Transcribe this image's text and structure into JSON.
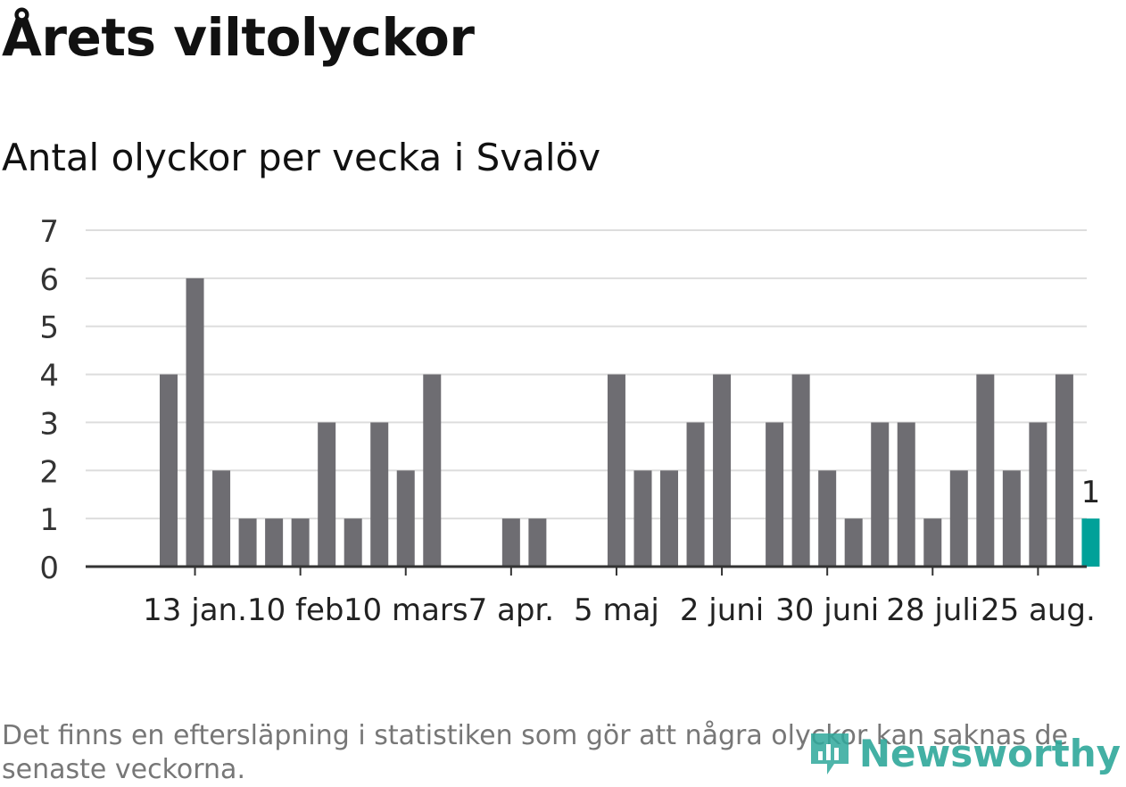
{
  "title": "Årets viltolyckor",
  "subtitle": "Antal olyckor per vecka i Svalöv",
  "footnote": "Det finns en eftersläpning i statistiken som gör att några olyckor kan saknas de senaste veckorna.",
  "brand": "Newsworthy",
  "colors": {
    "bar": "#6e6d72",
    "highlight": "#00a199",
    "grid": "#dddddd",
    "axis": "#333333"
  },
  "chart_data": {
    "type": "bar",
    "title": "Antal olyckor per vecka i Svalöv",
    "xlabel": "",
    "ylabel": "",
    "ylim": [
      0,
      7
    ],
    "yticks": [
      0,
      1,
      2,
      3,
      4,
      5,
      6,
      7
    ],
    "grid": true,
    "values": [
      4,
      6,
      2,
      1,
      1,
      1,
      3,
      1,
      3,
      2,
      4,
      0,
      0,
      1,
      1,
      0,
      0,
      4,
      2,
      2,
      3,
      4,
      0,
      3,
      4,
      2,
      1,
      3,
      3,
      1,
      2,
      4,
      2,
      3,
      4,
      1
    ],
    "highlight_index": 35,
    "data_labels": [
      {
        "index": 35,
        "text": "1"
      }
    ],
    "x_ticks": [
      {
        "index": 1,
        "label": "13 jan."
      },
      {
        "index": 5,
        "label": "10 feb."
      },
      {
        "index": 9,
        "label": "10 mars"
      },
      {
        "index": 13,
        "label": "7 apr."
      },
      {
        "index": 17,
        "label": "5 maj"
      },
      {
        "index": 21,
        "label": "2 juni"
      },
      {
        "index": 25,
        "label": "30 juni"
      },
      {
        "index": 29,
        "label": "28 juli"
      },
      {
        "index": 33,
        "label": "25 aug."
      }
    ]
  }
}
